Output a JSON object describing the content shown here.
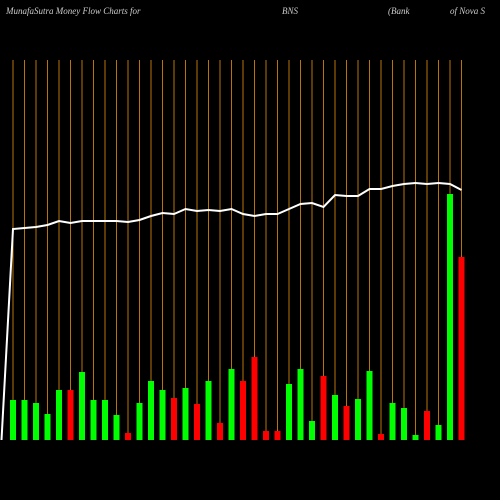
{
  "chart_data": {
    "type": "bar",
    "title_parts": [
      "MunafaSutra  Money Flow  Charts for",
      "BNS",
      "(Bank",
      "of Nova  S"
    ],
    "categories": [
      null,
      null,
      null,
      null,
      null,
      null,
      null,
      null,
      null,
      null,
      null,
      null,
      null,
      null,
      null,
      null,
      null,
      null,
      null,
      null,
      null,
      null,
      null,
      null,
      null,
      null,
      null,
      null,
      null,
      null,
      null,
      null,
      null,
      null,
      null,
      null,
      null,
      null,
      null,
      null,
      null
    ],
    "values": [
      null,
      40,
      40,
      37,
      26,
      50,
      50,
      68,
      40,
      40,
      25,
      7,
      37,
      59,
      50,
      42,
      52,
      36,
      59,
      17,
      71,
      59,
      83,
      9,
      9,
      56,
      71,
      19,
      64,
      45,
      34,
      41,
      69,
      6,
      37,
      32,
      5,
      29,
      15,
      246,
      183
    ],
    "colors": [
      null,
      "#00ff00",
      "#00ff00",
      "#00ff00",
      "#00ff00",
      "#00ff00",
      "#ff0000",
      "#00ff00",
      "#00ff00",
      "#00ff00",
      "#00ff00",
      "#ff0000",
      "#00ff00",
      "#00ff00",
      "#00ff00",
      "#ff0000",
      "#00ff00",
      "#ff0000",
      "#00ff00",
      "#ff0000",
      "#00ff00",
      "#ff0000",
      "#ff0000",
      "#ff0000",
      "#ff0000",
      "#00ff00",
      "#00ff00",
      "#00ff00",
      "#ff0000",
      "#00ff00",
      "#ff0000",
      "#00ff00",
      "#00ff00",
      "#ff0000",
      "#00ff00",
      "#00ff00",
      "#00ff00",
      "#ff0000",
      "#00ff00",
      "#00ff00",
      "#ff0000"
    ],
    "line": {
      "color": "#ffffff",
      "values": [
        0,
        211,
        212,
        213,
        215,
        219,
        217,
        219,
        219,
        219,
        219,
        218,
        220,
        224,
        227,
        226,
        231,
        229,
        230,
        229,
        231,
        226,
        224,
        226,
        226,
        231,
        236,
        237,
        233,
        245,
        244,
        244,
        251,
        251,
        254,
        256,
        257,
        256,
        257,
        256,
        250
      ]
    },
    "gridline_color": "#b8730a"
  }
}
